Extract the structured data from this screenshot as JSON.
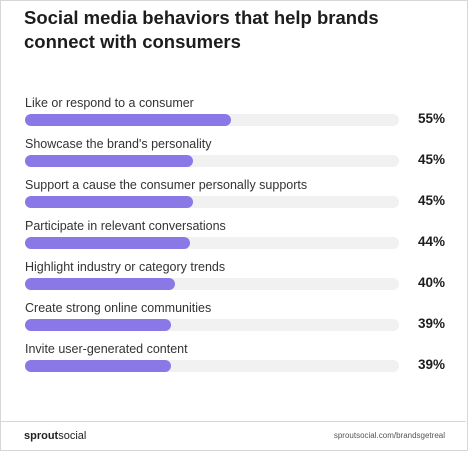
{
  "header": {
    "title": "Social media behaviors that help brands connect with consumers"
  },
  "chart_data": {
    "type": "bar",
    "title": "Social media behaviors that help brands connect with consumers",
    "categories": [
      "Like or respond to a consumer",
      "Showcase the brand's personality",
      "Support a cause the consumer personally supports",
      "Participate in relevant conversations",
      "Highlight industry or category trends",
      "Create strong online communities",
      "Invite user-generated content"
    ],
    "values": [
      55,
      45,
      45,
      44,
      40,
      39,
      39
    ],
    "value_labels": [
      "55%",
      "45%",
      "45%",
      "44%",
      "40%",
      "39%",
      "39%"
    ],
    "xlim": [
      0,
      100
    ],
    "orientation": "horizontal",
    "grid": false,
    "colors": {
      "bar": "#8a78e6",
      "track": "#f1f1f1"
    }
  },
  "footer": {
    "brand_part1": "sprout",
    "brand_part2": "social",
    "url": "sproutsocial.com/brandsgetreal"
  }
}
